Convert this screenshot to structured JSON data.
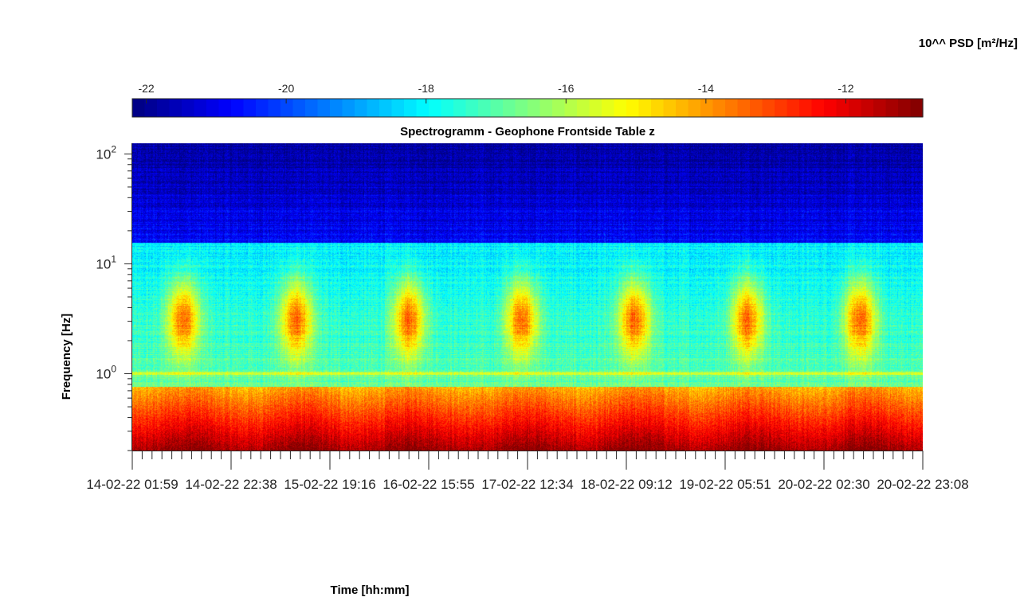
{
  "chart_data": {
    "type": "heatmap",
    "title": "Spectrogramm - Geophone Frontside Table z",
    "xlabel": "Time [hh:mm]",
    "ylabel": "Frequency [Hz]",
    "yscale": "log",
    "ylim": [
      0.2,
      125
    ],
    "y_ticks": [
      {
        "value": 1,
        "base": "10",
        "exp": "0"
      },
      {
        "value": 10,
        "base": "10",
        "exp": "1"
      },
      {
        "value": 100,
        "base": "10",
        "exp": "2"
      }
    ],
    "x_ticks": [
      "14-02-22 01:59",
      "14-02-22 22:38",
      "15-02-22 19:16",
      "16-02-22 15:55",
      "17-02-22 12:34",
      "18-02-22 09:12",
      "19-02-22 05:51",
      "20-02-22 02:30",
      "20-02-22 23:08"
    ],
    "colorbar": {
      "title": "10^^ PSD [m²/Hz]",
      "colormap": "jet",
      "range": [
        -22.2,
        -10.9
      ],
      "ticks": [
        -22,
        -20,
        -18,
        -16,
        -14,
        -12
      ],
      "tick_labels": [
        "-22",
        "-20",
        "-18",
        "-16",
        "-14",
        "-12"
      ]
    },
    "features": {
      "high_band_psd_log10": -20.8,
      "mid_band_psd_log10": -18.2,
      "low_band_psd_log10": -14.5,
      "low_band_bottom_psd_log10": -11.5,
      "band_edge_freq_hz": [
        0.75,
        15.5
      ],
      "persistent_line_freq_hz": 1.0,
      "daily_activity_freq_range_hz": [
        2.5,
        4.0
      ],
      "daily_activity_peak_psd_log10": -13.0
    }
  }
}
